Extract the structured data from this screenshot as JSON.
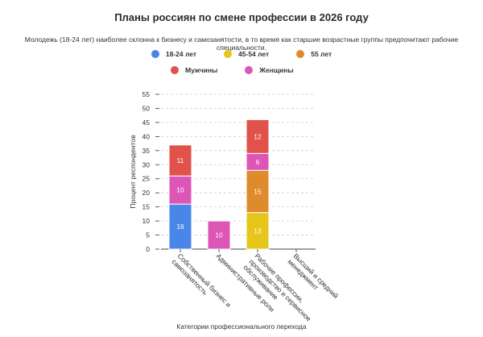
{
  "chart_data": {
    "type": "bar",
    "stacked": true,
    "title": "Планы россиян по смене профессии в 2026 году",
    "subtitle": "Молодежь (18-24 лет) наиболее склонна к бизнесу и самозанятости, в то время как старшие возрастные группы предпочитают рабочие специальности.",
    "xlabel": "Категории профессионального перехода",
    "ylabel": "Процент респондентов",
    "ylim": [
      0,
      55
    ],
    "yticks": [
      0,
      5,
      10,
      15,
      20,
      25,
      30,
      35,
      40,
      45,
      50,
      55
    ],
    "grid": true,
    "legend_position": "top",
    "categories": [
      [
        "Собственный бизнес и",
        "самозанятость"
      ],
      [
        "Административные роли"
      ],
      [
        "Рабочие профессии,",
        "производство и сервисное",
        "обслуживание"
      ],
      [
        "Высший и средний",
        "менеджмент"
      ]
    ],
    "series": [
      {
        "name": "18-24 лет",
        "color": "#4a86e8",
        "values": [
          16,
          0,
          0,
          0
        ]
      },
      {
        "name": "45-54 лет",
        "color": "#e6c619",
        "values": [
          0,
          0,
          13,
          0
        ]
      },
      {
        "name": "55 лет",
        "color": "#e08a2e",
        "values": [
          0,
          0,
          15,
          0
        ]
      },
      {
        "name": "Женщины",
        "color": "#dd55b5",
        "values": [
          10,
          10,
          6,
          0
        ]
      },
      {
        "name": "Мужчины",
        "color": "#e0524a",
        "values": [
          11,
          0,
          12,
          0
        ]
      }
    ]
  },
  "legend": {
    "row1": [
      {
        "label": "18-24 лет",
        "color": "#4a86e8"
      },
      {
        "label": "45-54 лет",
        "color": "#e6c619"
      },
      {
        "label": "55 лет",
        "color": "#e08a2e"
      }
    ],
    "row2": [
      {
        "label": "Мужчины",
        "color": "#e0524a"
      },
      {
        "label": "Женщины",
        "color": "#dd55b5"
      }
    ]
  }
}
